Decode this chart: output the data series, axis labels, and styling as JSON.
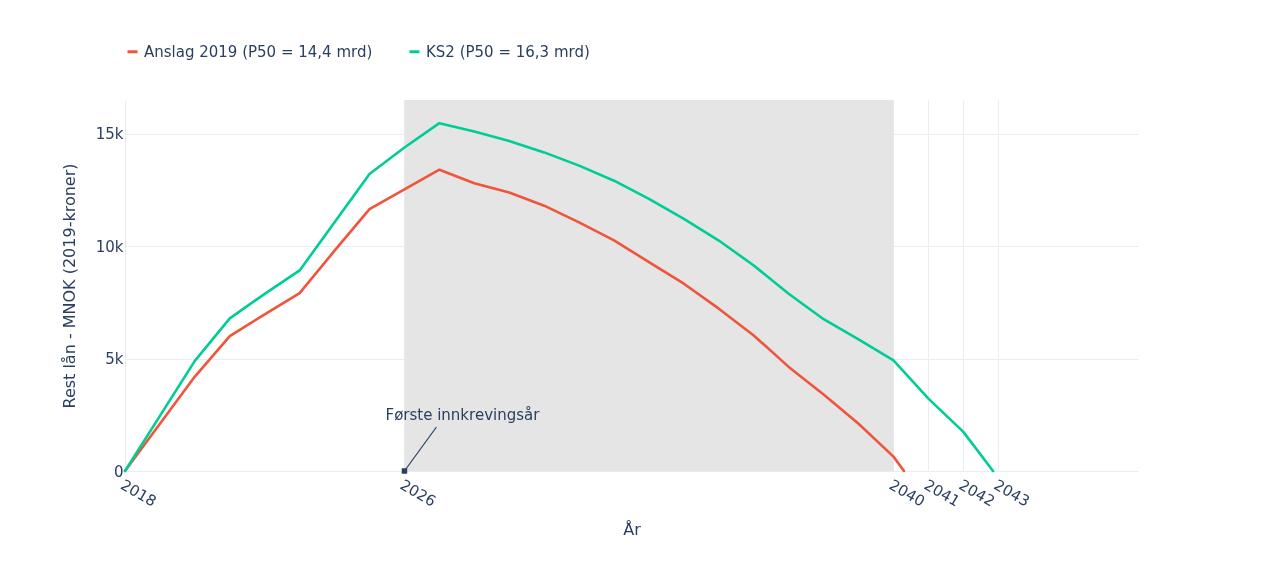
{
  "chart_data": {
    "type": "line",
    "xlabel": "År",
    "ylabel": "Rest lån - MNOK (2019-kroner)",
    "xlim": [
      2018,
      2047
    ],
    "xticks": [
      2018,
      2026,
      2040,
      2041,
      2042,
      2043
    ],
    "ylim": [
      0,
      16500
    ],
    "yticks": [
      0,
      {
        "value": 5000,
        "label": "5k"
      },
      {
        "value": 10000,
        "label": "10k"
      },
      {
        "value": 15000,
        "label": "15k"
      }
    ],
    "series": [
      {
        "name": "Anslag 2019 (P50 = 14,4 mrd)",
        "color": "#ef553b",
        "x": [
          2018,
          2019,
          2020,
          2021,
          2022,
          2023,
          2024,
          2025,
          2026,
          2027,
          2028,
          2029,
          2030,
          2031,
          2032,
          2033,
          2034,
          2035,
          2036,
          2037,
          2038,
          2039,
          2040,
          2040.3
        ],
        "values": [
          0,
          2100,
          4200,
          6000,
          6970,
          7910,
          9800,
          11650,
          12530,
          13400,
          12800,
          12390,
          11800,
          11060,
          10260,
          9290,
          8330,
          7220,
          6030,
          4630,
          3400,
          2100,
          640,
          0
        ]
      },
      {
        "name": "KS2 (P50 = 16,3 mrd)",
        "color": "#00cc96",
        "x": [
          2018,
          2019,
          2020,
          2021,
          2022,
          2023,
          2024,
          2025,
          2026,
          2027,
          2028,
          2029,
          2030,
          2031,
          2032,
          2033,
          2034,
          2035,
          2036,
          2037,
          2038,
          2039,
          2040,
          2041,
          2042,
          2042.85
        ],
        "values": [
          0,
          2450,
          4900,
          6790,
          7880,
          8920,
          11060,
          13210,
          14390,
          15470,
          15100,
          14680,
          14170,
          13580,
          12910,
          12100,
          11210,
          10250,
          9140,
          7880,
          6750,
          5850,
          4920,
          3220,
          1740,
          0
        ]
      }
    ],
    "bands": [
      {
        "axis": "x",
        "from": 2026,
        "to": 2040,
        "color": "#e5e5e5"
      }
    ],
    "annotations": [
      {
        "text": "Første innkrevingsår",
        "x": 2026,
        "y": 0
      }
    ],
    "grid": true,
    "legend": "top",
    "line_style": "solid",
    "marker": "none"
  }
}
